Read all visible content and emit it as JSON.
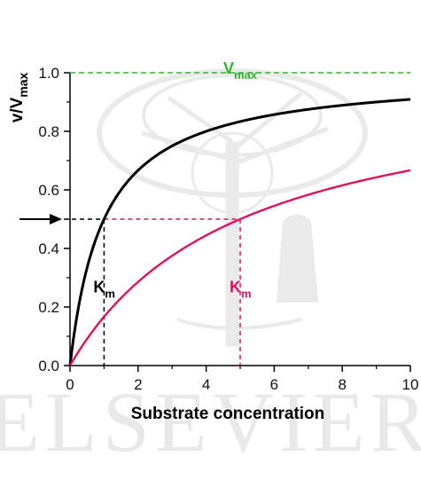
{
  "chart_data": {
    "type": "line",
    "xlabel": "Substrate concentration",
    "ylabel": "v/V",
    "ylabel_sub": "max",
    "xlim": [
      0,
      10
    ],
    "ylim": [
      0,
      1.0
    ],
    "xticks": [
      0,
      2,
      4,
      6,
      8,
      10
    ],
    "xtick_labels": [
      "0",
      "2",
      "4",
      "6",
      "8",
      "10"
    ],
    "yticks": [
      0.0,
      0.2,
      0.4,
      0.6,
      0.8,
      1.0
    ],
    "ytick_labels": [
      "0.0",
      "0.2",
      "0.4",
      "0.6",
      "0.8",
      "1.0"
    ],
    "grid": false,
    "series": [
      {
        "km": 1,
        "color": "#000000",
        "x": [
          0,
          0.25,
          0.5,
          1,
          1.5,
          2,
          3,
          4,
          5,
          6,
          7,
          8,
          9,
          10
        ],
        "y": [
          0,
          0.2,
          0.333,
          0.5,
          0.6,
          0.667,
          0.75,
          0.8,
          0.833,
          0.857,
          0.875,
          0.889,
          0.9,
          0.909
        ]
      },
      {
        "km": 5,
        "color": "#e0115f",
        "x": [
          0,
          0.5,
          1,
          2,
          3,
          4,
          5,
          6,
          7,
          8,
          9,
          10
        ],
        "y": [
          0,
          0.091,
          0.167,
          0.286,
          0.375,
          0.444,
          0.5,
          0.545,
          0.583,
          0.615,
          0.643,
          0.667
        ]
      }
    ],
    "vmax_line": {
      "y": 1.0,
      "color": "#2db82d",
      "label": "V",
      "label_sub": "max"
    },
    "half_line": {
      "y": 0.5
    },
    "km_markers": [
      {
        "x": 1,
        "label": "K",
        "sub": "m",
        "color": "#000000"
      },
      {
        "x": 5,
        "label": "K",
        "sub": "m",
        "color": "#e0115f"
      }
    ]
  },
  "watermark": {
    "text": "ELSEVIER"
  }
}
